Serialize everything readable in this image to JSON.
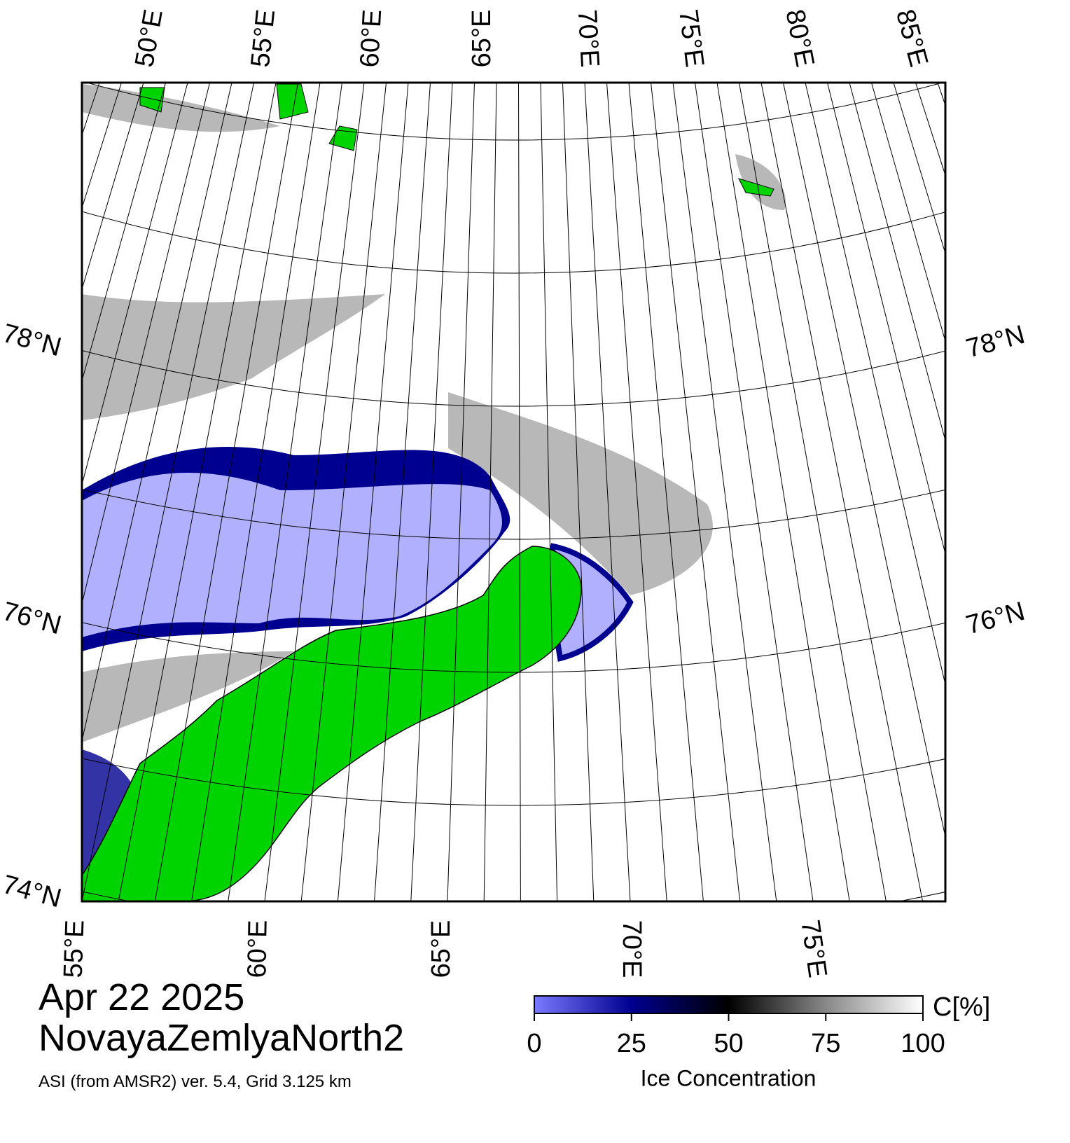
{
  "map": {
    "top_labels": [
      "50°E",
      "55°E",
      "60°E",
      "65°E",
      "70°E",
      "75°E",
      "80°E",
      "85°E"
    ],
    "bottom_labels": [
      "55°E",
      "60°E",
      "65°E",
      "70°E",
      "75°E"
    ],
    "left_labels": [
      "78°N",
      "76°N",
      "74°N"
    ],
    "right_labels": [
      "78°N",
      "76°N"
    ]
  },
  "caption": {
    "date": "Apr 22 2025",
    "region": "NovayaZemlyaNorth2",
    "source": "ASI (from AMSR2) ver. 5.4,  Grid 3.125 km"
  },
  "colorbar": {
    "lim": [
      0,
      100
    ],
    "ticks": [
      0,
      25,
      50,
      75,
      100
    ],
    "unit": "C[%]",
    "label": "Ice Concentration"
  }
}
